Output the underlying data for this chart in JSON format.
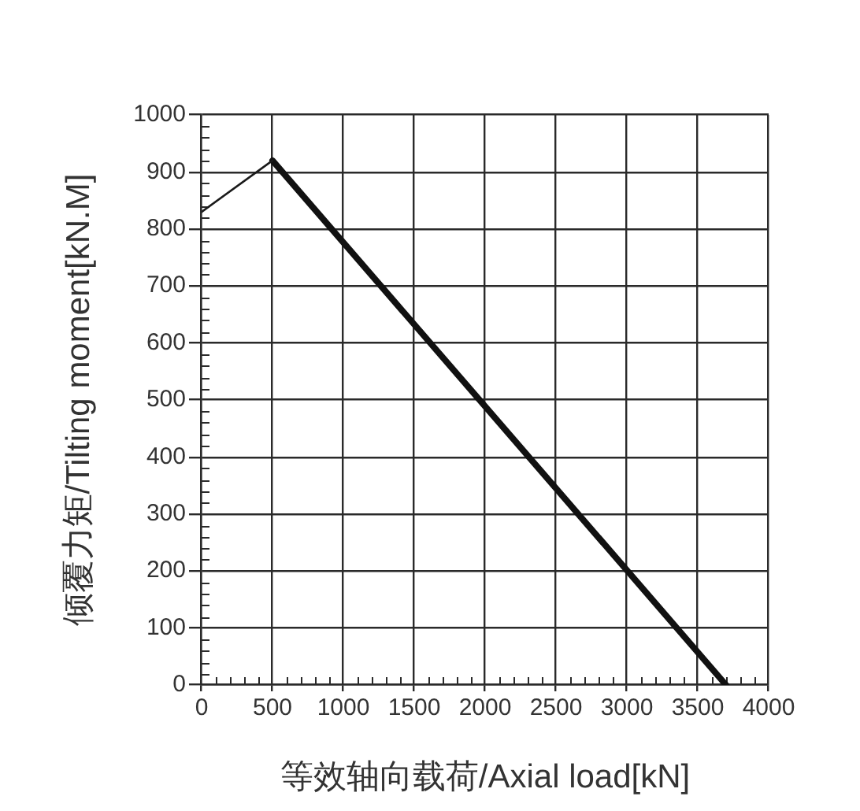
{
  "chart_data": {
    "type": "line",
    "xlabel": "等效轴向载荷/Axial load[kN]",
    "ylabel": "倾覆力矩/Tilting moment[kN.M]",
    "series": [
      {
        "color": "#1a1a1a",
        "x": [
          0,
          500
        ],
        "values": [
          830,
          920
        ]
      },
      {
        "color": "#111111",
        "x": [
          500,
          3700
        ],
        "values": [
          920,
          0
        ]
      }
    ],
    "xlim": [
      0,
      4000
    ],
    "xticks": [
      0,
      {
        "value": 100,
        "label": null
      },
      {
        "value": 200,
        "label": null
      },
      {
        "value": 300,
        "label": null
      },
      {
        "value": 400,
        "label": null
      },
      500,
      {
        "value": 600,
        "label": null
      },
      {
        "value": 700,
        "label": null
      },
      {
        "value": 800,
        "label": null
      },
      {
        "value": 900,
        "label": null
      },
      1000,
      {
        "value": 1100,
        "label": null
      },
      {
        "value": 1200,
        "label": null
      },
      {
        "value": 1300,
        "label": null
      },
      {
        "value": 1400,
        "label": null
      },
      1500,
      {
        "value": 1600,
        "label": null
      },
      {
        "value": 1700,
        "label": null
      },
      {
        "value": 1800,
        "label": null
      },
      {
        "value": 1900,
        "label": null
      },
      2000,
      {
        "value": 2100,
        "label": null
      },
      {
        "value": 2200,
        "label": null
      },
      {
        "value": 2300,
        "label": null
      },
      {
        "value": 2400,
        "label": null
      },
      2500,
      {
        "value": 2600,
        "label": null
      },
      {
        "value": 2700,
        "label": null
      },
      {
        "value": 2800,
        "label": null
      },
      {
        "value": 2900,
        "label": null
      },
      3000,
      {
        "value": 3100,
        "label": null
      },
      {
        "value": 3200,
        "label": null
      },
      {
        "value": 3300,
        "label": null
      },
      {
        "value": 3400,
        "label": null
      },
      3500,
      {
        "value": 3600,
        "label": null
      },
      {
        "value": 3700,
        "label": null
      },
      {
        "value": 3800,
        "label": null
      },
      {
        "value": 3900,
        "label": null
      },
      4000
    ],
    "ylim": [
      0,
      1000
    ],
    "yticks": [
      0,
      {
        "value": 20,
        "label": null
      },
      {
        "value": 40,
        "label": null
      },
      {
        "value": 60,
        "label": null
      },
      {
        "value": 80,
        "label": null
      },
      100,
      {
        "value": 120,
        "label": null
      },
      {
        "value": 140,
        "label": null
      },
      {
        "value": 160,
        "label": null
      },
      {
        "value": 180,
        "label": null
      },
      200,
      {
        "value": 220,
        "label": null
      },
      {
        "value": 240,
        "label": null
      },
      {
        "value": 260,
        "label": null
      },
      {
        "value": 280,
        "label": null
      },
      300,
      {
        "value": 320,
        "label": null
      },
      {
        "value": 340,
        "label": null
      },
      {
        "value": 360,
        "label": null
      },
      {
        "value": 380,
        "label": null
      },
      400,
      {
        "value": 420,
        "label": null
      },
      {
        "value": 440,
        "label": null
      },
      {
        "value": 460,
        "label": null
      },
      {
        "value": 480,
        "label": null
      },
      500,
      {
        "value": 520,
        "label": null
      },
      {
        "value": 540,
        "label": null
      },
      {
        "value": 560,
        "label": null
      },
      {
        "value": 580,
        "label": null
      },
      600,
      {
        "value": 620,
        "label": null
      },
      {
        "value": 640,
        "label": null
      },
      {
        "value": 660,
        "label": null
      },
      {
        "value": 680,
        "label": null
      },
      700,
      {
        "value": 720,
        "label": null
      },
      {
        "value": 740,
        "label": null
      },
      {
        "value": 760,
        "label": null
      },
      {
        "value": 780,
        "label": null
      },
      800,
      {
        "value": 820,
        "label": null
      },
      {
        "value": 840,
        "label": null
      },
      {
        "value": 860,
        "label": null
      },
      {
        "value": 880,
        "label": null
      },
      900,
      {
        "value": 920,
        "label": null
      },
      {
        "value": 940,
        "label": null
      },
      {
        "value": 960,
        "label": null
      },
      {
        "value": 980,
        "label": null
      },
      1000
    ],
    "grid": true,
    "legend": false,
    "marker": "none",
    "line_style": "solid"
  }
}
